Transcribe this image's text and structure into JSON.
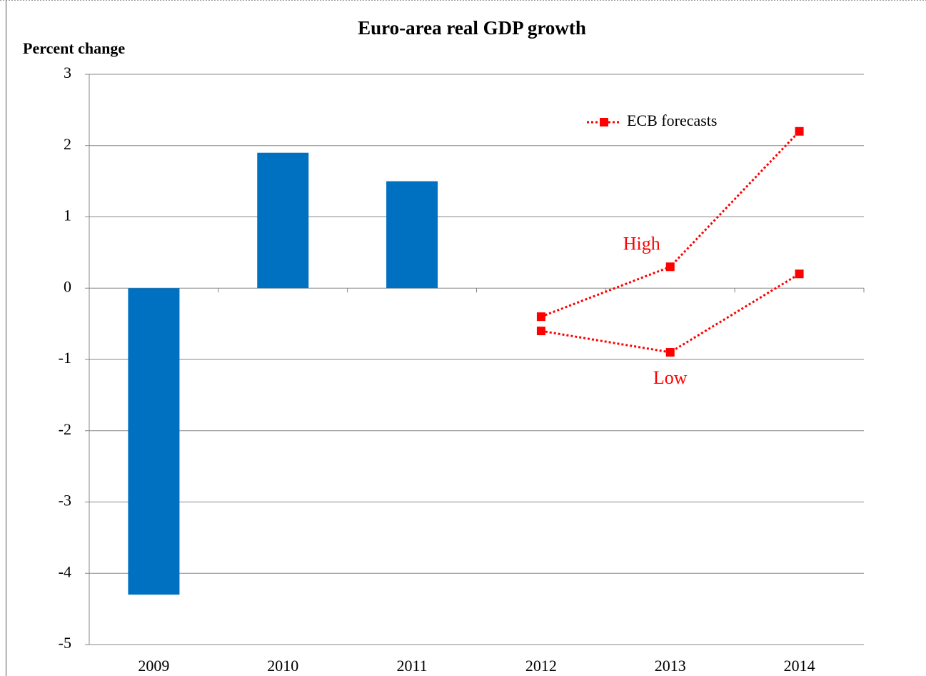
{
  "chart_data": {
    "type": "bar",
    "title": "Euro-area real GDP growth",
    "y_label": "Percent change",
    "categories": [
      "2009",
      "2010",
      "2011",
      "2012",
      "2013",
      "2014"
    ],
    "series": [
      {
        "color": "#0070c0",
        "values": [
          -4.3,
          1.9,
          1.5,
          null,
          null,
          null
        ]
      },
      {
        "name": "High",
        "type": "line",
        "color": "#ff0000",
        "values": [
          null,
          null,
          null,
          -0.4,
          0.3,
          2.2
        ]
      },
      {
        "name": "Low",
        "type": "line",
        "color": "#ff0000",
        "values": [
          null,
          null,
          null,
          -0.6,
          -0.9,
          0.2
        ]
      }
    ],
    "legend": "ECB forecasts",
    "ylim": [
      -5,
      3
    ],
    "yticks": [
      -5,
      -4,
      -3,
      -2,
      -1,
      0,
      1,
      2,
      3
    ],
    "grid": true
  }
}
